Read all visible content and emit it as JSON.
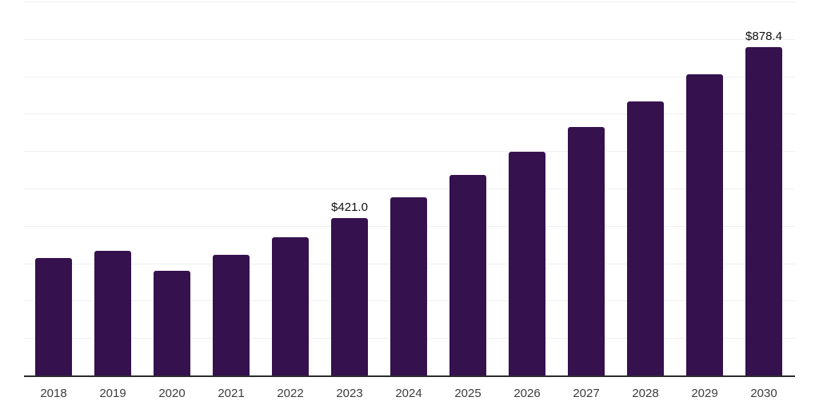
{
  "chart_data": {
    "type": "bar",
    "title": "",
    "xlabel": "",
    "ylabel": "",
    "categories": [
      "2018",
      "2019",
      "2020",
      "2021",
      "2022",
      "2023",
      "2024",
      "2025",
      "2026",
      "2027",
      "2028",
      "2029",
      "2030"
    ],
    "values": [
      314,
      333,
      279,
      323,
      370,
      421.0,
      476,
      536,
      599,
      665,
      733,
      806,
      878.4
    ],
    "data_labels": [
      {
        "index": 5,
        "text": "$421.0"
      },
      {
        "index": 12,
        "text": "$878.4"
      }
    ],
    "ylim": [
      0,
      1000
    ],
    "gridline_interval": 100,
    "grid": true,
    "legend": "none",
    "colors": {
      "bar": "#35114E",
      "gridline": "#F0F0F0",
      "axis_line": "#2B2B2B",
      "tick_label": "#3D3D3D",
      "data_label": "#111111",
      "background": "#FFFFFF"
    }
  }
}
